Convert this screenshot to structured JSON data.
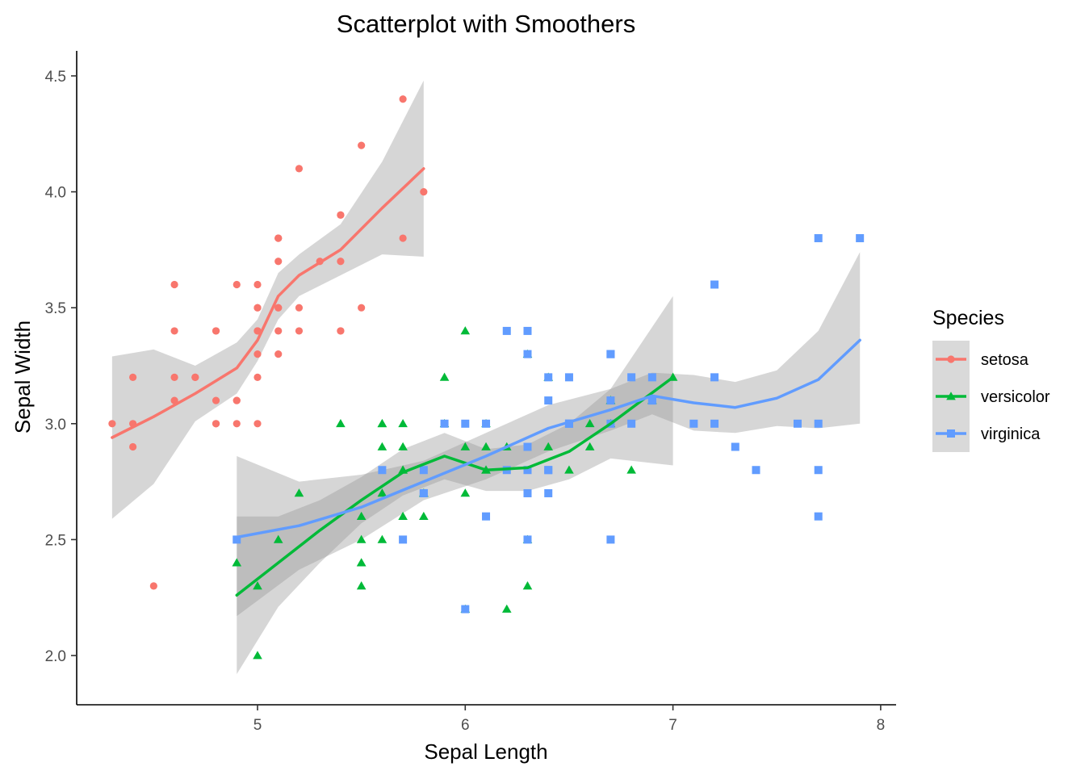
{
  "chart_data": {
    "type": "scatter",
    "title": "Scatterplot with Smoothers",
    "xlabel": "Sepal Length",
    "ylabel": "Sepal Width",
    "xlim": [
      4.2,
      8.1
    ],
    "ylim": [
      1.8,
      4.6
    ],
    "xticks": [
      "5",
      "6",
      "7",
      "8"
    ],
    "yticks": [
      "2.0",
      "2.5",
      "3.0",
      "3.5",
      "4.0",
      "4.5"
    ],
    "grid": false,
    "legend": {
      "title": "Species",
      "position": "right"
    },
    "series": [
      {
        "name": "setosa",
        "color": "#F8766D",
        "marker": "circle",
        "points": [
          [
            5.1,
            3.5
          ],
          [
            4.9,
            3.0
          ],
          [
            4.7,
            3.2
          ],
          [
            4.6,
            3.1
          ],
          [
            5.0,
            3.6
          ],
          [
            5.4,
            3.9
          ],
          [
            4.6,
            3.4
          ],
          [
            5.0,
            3.4
          ],
          [
            4.4,
            2.9
          ],
          [
            4.9,
            3.1
          ],
          [
            5.4,
            3.7
          ],
          [
            4.8,
            3.4
          ],
          [
            4.8,
            3.0
          ],
          [
            4.3,
            3.0
          ],
          [
            5.8,
            4.0
          ],
          [
            5.7,
            4.4
          ],
          [
            5.4,
            3.9
          ],
          [
            5.1,
            3.5
          ],
          [
            5.7,
            3.8
          ],
          [
            5.1,
            3.8
          ],
          [
            5.4,
            3.4
          ],
          [
            5.1,
            3.7
          ],
          [
            4.6,
            3.6
          ],
          [
            5.1,
            3.3
          ],
          [
            4.8,
            3.4
          ],
          [
            5.0,
            3.0
          ],
          [
            5.0,
            3.4
          ],
          [
            5.2,
            3.5
          ],
          [
            5.2,
            3.4
          ],
          [
            4.7,
            3.2
          ],
          [
            4.8,
            3.1
          ],
          [
            5.4,
            3.4
          ],
          [
            5.2,
            4.1
          ],
          [
            5.5,
            4.2
          ],
          [
            4.9,
            3.1
          ],
          [
            5.0,
            3.2
          ],
          [
            5.5,
            3.5
          ],
          [
            4.9,
            3.6
          ],
          [
            4.4,
            3.0
          ],
          [
            5.1,
            3.4
          ],
          [
            5.0,
            3.5
          ],
          [
            4.5,
            2.3
          ],
          [
            4.4,
            3.2
          ],
          [
            5.0,
            3.5
          ],
          [
            5.1,
            3.8
          ],
          [
            4.8,
            3.0
          ],
          [
            5.1,
            3.8
          ],
          [
            4.6,
            3.2
          ],
          [
            5.3,
            3.7
          ],
          [
            5.0,
            3.3
          ]
        ],
        "smooth": [
          [
            4.3,
            2.94
          ],
          [
            4.5,
            3.03
          ],
          [
            4.7,
            3.13
          ],
          [
            4.9,
            3.24
          ],
          [
            5.0,
            3.36
          ],
          [
            5.1,
            3.55
          ],
          [
            5.2,
            3.64
          ],
          [
            5.4,
            3.75
          ],
          [
            5.6,
            3.93
          ],
          [
            5.8,
            4.1
          ]
        ],
        "band": [
          [
            4.3,
            2.59,
            3.29
          ],
          [
            4.5,
            2.74,
            3.32
          ],
          [
            4.7,
            3.01,
            3.25
          ],
          [
            4.9,
            3.13,
            3.35
          ],
          [
            5.0,
            3.27,
            3.45
          ],
          [
            5.1,
            3.45,
            3.65
          ],
          [
            5.2,
            3.55,
            3.73
          ],
          [
            5.4,
            3.64,
            3.86
          ],
          [
            5.6,
            3.73,
            4.13
          ],
          [
            5.8,
            3.72,
            4.48
          ]
        ]
      },
      {
        "name": "versicolor",
        "color": "#00BA38",
        "marker": "triangle",
        "points": [
          [
            7.0,
            3.2
          ],
          [
            6.4,
            3.2
          ],
          [
            6.9,
            3.1
          ],
          [
            5.5,
            2.3
          ],
          [
            6.5,
            2.8
          ],
          [
            5.7,
            2.8
          ],
          [
            6.3,
            3.3
          ],
          [
            4.9,
            2.4
          ],
          [
            6.6,
            2.9
          ],
          [
            5.2,
            2.7
          ],
          [
            5.0,
            2.0
          ],
          [
            5.9,
            3.0
          ],
          [
            6.0,
            2.2
          ],
          [
            6.1,
            2.9
          ],
          [
            5.6,
            2.9
          ],
          [
            6.7,
            3.1
          ],
          [
            5.6,
            3.0
          ],
          [
            5.8,
            2.7
          ],
          [
            6.2,
            2.2
          ],
          [
            5.6,
            2.5
          ],
          [
            5.9,
            3.2
          ],
          [
            6.1,
            2.8
          ],
          [
            6.3,
            2.5
          ],
          [
            6.1,
            2.8
          ],
          [
            6.4,
            2.9
          ],
          [
            6.6,
            3.0
          ],
          [
            6.8,
            2.8
          ],
          [
            6.7,
            3.0
          ],
          [
            6.0,
            2.9
          ],
          [
            5.7,
            2.6
          ],
          [
            5.5,
            2.4
          ],
          [
            5.5,
            2.4
          ],
          [
            5.8,
            2.7
          ],
          [
            6.0,
            2.7
          ],
          [
            5.4,
            3.0
          ],
          [
            6.0,
            3.4
          ],
          [
            6.7,
            3.1
          ],
          [
            6.3,
            2.3
          ],
          [
            5.6,
            3.0
          ],
          [
            5.5,
            2.5
          ],
          [
            5.5,
            2.6
          ],
          [
            6.1,
            3.0
          ],
          [
            5.8,
            2.6
          ],
          [
            5.0,
            2.3
          ],
          [
            5.6,
            2.7
          ],
          [
            5.7,
            3.0
          ],
          [
            5.7,
            2.9
          ],
          [
            6.2,
            2.9
          ],
          [
            5.1,
            2.5
          ],
          [
            5.7,
            2.8
          ]
        ],
        "smooth": [
          [
            4.9,
            2.26
          ],
          [
            5.1,
            2.4
          ],
          [
            5.3,
            2.54
          ],
          [
            5.5,
            2.67
          ],
          [
            5.7,
            2.79
          ],
          [
            5.9,
            2.86
          ],
          [
            6.1,
            2.8
          ],
          [
            6.3,
            2.81
          ],
          [
            6.5,
            2.88
          ],
          [
            6.7,
            3.0
          ],
          [
            7.0,
            3.2
          ]
        ],
        "band": [
          [
            4.9,
            1.92,
            2.6
          ],
          [
            5.1,
            2.21,
            2.6
          ],
          [
            5.3,
            2.4,
            2.67
          ],
          [
            5.5,
            2.57,
            2.77
          ],
          [
            5.7,
            2.69,
            2.89
          ],
          [
            5.9,
            2.76,
            2.96
          ],
          [
            6.1,
            2.71,
            2.89
          ],
          [
            6.3,
            2.71,
            2.91
          ],
          [
            6.5,
            2.76,
            3.0
          ],
          [
            6.7,
            2.85,
            3.15
          ],
          [
            7.0,
            2.82,
            3.55
          ]
        ]
      },
      {
        "name": "virginica",
        "color": "#619CFF",
        "marker": "square",
        "points": [
          [
            6.3,
            3.3
          ],
          [
            5.8,
            2.7
          ],
          [
            7.1,
            3.0
          ],
          [
            6.3,
            2.9
          ],
          [
            6.5,
            3.0
          ],
          [
            7.6,
            3.0
          ],
          [
            4.9,
            2.5
          ],
          [
            7.3,
            2.9
          ],
          [
            6.7,
            2.5
          ],
          [
            7.2,
            3.6
          ],
          [
            6.5,
            3.2
          ],
          [
            6.4,
            2.7
          ],
          [
            6.8,
            3.0
          ],
          [
            5.7,
            2.5
          ],
          [
            5.8,
            2.8
          ],
          [
            6.4,
            3.2
          ],
          [
            6.5,
            3.0
          ],
          [
            7.7,
            3.8
          ],
          [
            7.7,
            2.6
          ],
          [
            6.0,
            2.2
          ],
          [
            6.9,
            3.2
          ],
          [
            5.6,
            2.8
          ],
          [
            7.7,
            2.8
          ],
          [
            6.3,
            2.7
          ],
          [
            6.7,
            3.3
          ],
          [
            7.2,
            3.2
          ],
          [
            6.2,
            2.8
          ],
          [
            6.1,
            3.0
          ],
          [
            6.4,
            2.8
          ],
          [
            7.2,
            3.0
          ],
          [
            7.4,
            2.8
          ],
          [
            7.9,
            3.8
          ],
          [
            6.4,
            2.8
          ],
          [
            6.3,
            2.8
          ],
          [
            6.1,
            2.6
          ],
          [
            7.7,
            3.0
          ],
          [
            6.3,
            3.4
          ],
          [
            6.4,
            3.1
          ],
          [
            6.0,
            3.0
          ],
          [
            6.9,
            3.1
          ],
          [
            6.7,
            3.1
          ],
          [
            6.9,
            3.1
          ],
          [
            5.8,
            2.7
          ],
          [
            6.8,
            3.2
          ],
          [
            6.7,
            3.3
          ],
          [
            6.7,
            3.0
          ],
          [
            6.3,
            2.5
          ],
          [
            6.5,
            3.0
          ],
          [
            6.2,
            3.4
          ],
          [
            5.9,
            3.0
          ]
        ],
        "smooth": [
          [
            4.9,
            2.51
          ],
          [
            5.2,
            2.56
          ],
          [
            5.5,
            2.64
          ],
          [
            5.8,
            2.75
          ],
          [
            6.1,
            2.86
          ],
          [
            6.4,
            2.98
          ],
          [
            6.7,
            3.06
          ],
          [
            6.9,
            3.12
          ],
          [
            7.1,
            3.09
          ],
          [
            7.3,
            3.07
          ],
          [
            7.5,
            3.11
          ],
          [
            7.7,
            3.19
          ],
          [
            7.9,
            3.36
          ]
        ],
        "band": [
          [
            4.9,
            2.17,
            2.86
          ],
          [
            5.2,
            2.37,
            2.75
          ],
          [
            5.5,
            2.5,
            2.78
          ],
          [
            5.8,
            2.67,
            2.84
          ],
          [
            6.1,
            2.76,
            2.96
          ],
          [
            6.4,
            2.88,
            3.08
          ],
          [
            6.7,
            2.97,
            3.15
          ],
          [
            6.9,
            3.04,
            3.22
          ],
          [
            7.1,
            2.97,
            3.21
          ],
          [
            7.3,
            2.96,
            3.18
          ],
          [
            7.5,
            2.99,
            3.23
          ],
          [
            7.7,
            2.98,
            3.4
          ],
          [
            7.9,
            3.0,
            3.74
          ]
        ]
      }
    ]
  }
}
